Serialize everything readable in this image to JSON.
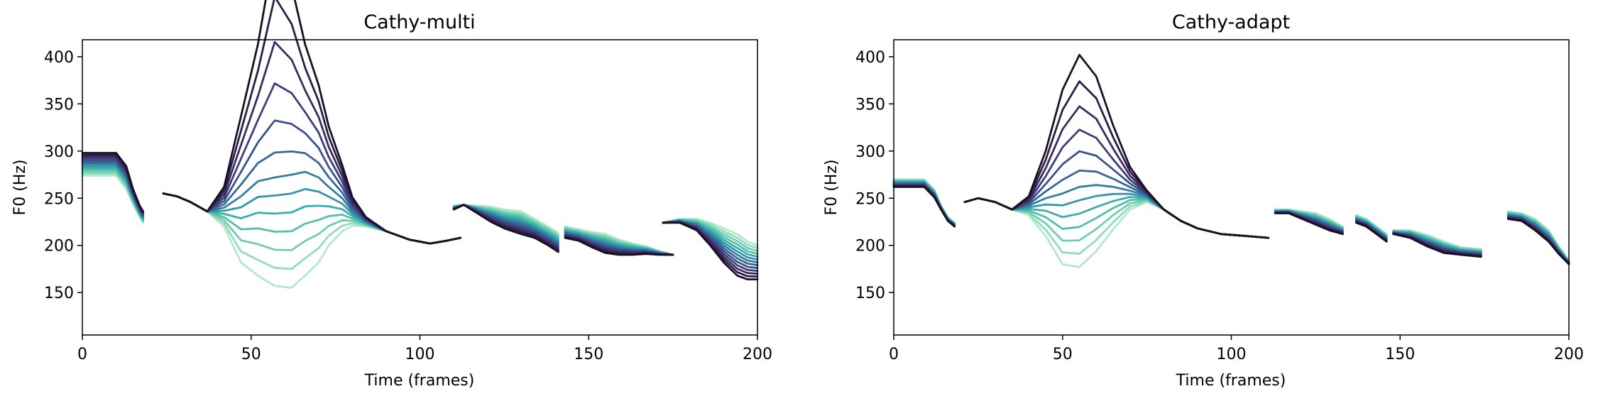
{
  "chart_data": [
    {
      "type": "line",
      "title": "Cathy-multi",
      "xlabel": "Time (frames)",
      "ylabel": "F0 (Hz)",
      "xlim": [
        0,
        200
      ],
      "ylim": [
        105,
        418
      ],
      "xticks": [
        0,
        50,
        100,
        150,
        200
      ],
      "yticks": [
        150,
        200,
        250,
        300,
        350,
        400
      ],
      "grid": false,
      "legend": "none",
      "colors": [
        "#b3e8cd",
        "#93dcbd",
        "#6fceb1",
        "#4fc0ae",
        "#3aadac",
        "#3497a6",
        "#347f9f",
        "#366798",
        "#3a508d",
        "#3d3d79",
        "#3a2c60",
        "#2d1e46",
        "#1a1022"
      ],
      "segments": [
        {
          "x": [
            0,
            10,
            13,
            15,
            17,
            18
          ],
          "base": [
            286,
            286,
            272,
            252,
            236,
            230
          ],
          "fan": [
            -12,
            -12,
            -12,
            -8,
            -6,
            -6
          ],
          "peak": 0
        },
        {
          "x": [
            24,
            28,
            32,
            37,
            42,
            47,
            52,
            57,
            62,
            66,
            70,
            73,
            77,
            80,
            84,
            90,
            97,
            103,
            108,
            112
          ],
          "base": [
            255,
            252,
            246,
            236,
            240,
            252,
            268,
            272,
            275,
            278,
            272,
            262,
            250,
            236,
            225,
            215,
            206,
            202,
            205,
            208
          ],
          "fan": [
            0,
            0,
            0,
            0,
            -20,
            -70,
            -100,
            -115,
            -120,
            -110,
            -90,
            -62,
            -35,
            -15,
            -5,
            0,
            0,
            0,
            0,
            0
          ],
          "peak": [
            0,
            0,
            0,
            0,
            2,
            15,
            45,
            128,
            80,
            25,
            8,
            2,
            0,
            0,
            0,
            0,
            0,
            0,
            0,
            0
          ]
        },
        {
          "x": [
            110,
            113,
            117,
            121,
            125,
            130,
            134,
            138,
            141
          ],
          "base": [
            240,
            243,
            238,
            233,
            228,
            224,
            218,
            210,
            203
          ],
          "fan": [
            2,
            0,
            4,
            8,
            10,
            12,
            10,
            10,
            10
          ],
          "peak": 0
        },
        {
          "x": [
            143,
            147,
            151,
            155,
            159,
            163,
            167,
            171,
            175
          ],
          "base": [
            214,
            211,
            206,
            202,
            198,
            196,
            195,
            192,
            190
          ],
          "fan": [
            6,
            6,
            8,
            10,
            8,
            6,
            4,
            2,
            0
          ],
          "peak": 0
        },
        {
          "x": [
            172,
            177,
            182,
            186,
            190,
            194,
            197,
            200
          ],
          "base": [
            224,
            226,
            222,
            212,
            200,
            190,
            184,
            182
          ],
          "fan": [
            0,
            2,
            6,
            12,
            18,
            22,
            20,
            18
          ],
          "peak": 0
        }
      ]
    },
    {
      "type": "line",
      "title": "Cathy-adapt",
      "xlabel": "Time (frames)",
      "ylabel": "F0 (Hz)",
      "xlim": [
        0,
        200
      ],
      "ylim": [
        105,
        418
      ],
      "xticks": [
        0,
        50,
        100,
        150,
        200
      ],
      "yticks": [
        150,
        200,
        250,
        300,
        350,
        400
      ],
      "grid": false,
      "legend": "none",
      "colors": [
        "#b3e8cd",
        "#93dcbd",
        "#6fceb1",
        "#4fc0ae",
        "#3aadac",
        "#3497a6",
        "#347f9f",
        "#366798",
        "#3a508d",
        "#3d3d79",
        "#3a2c60",
        "#2d1e46",
        "#1a1022"
      ],
      "segments": [
        {
          "x": [
            0,
            9,
            12,
            14,
            16,
            18
          ],
          "base": [
            266,
            266,
            255,
            240,
            228,
            222
          ],
          "fan": [
            4,
            4,
            4,
            2,
            2,
            2
          ],
          "peak": 0
        },
        {
          "x": [
            21,
            25,
            30,
            35,
            40,
            45,
            50,
            55,
            60,
            65,
            70,
            75,
            80,
            85,
            90,
            97,
            104,
            111
          ],
          "base": [
            246,
            250,
            246,
            238,
            242,
            250,
            255,
            262,
            264,
            262,
            258,
            252,
            238,
            226,
            218,
            212,
            210,
            208
          ],
          "fan": [
            0,
            0,
            0,
            0,
            -10,
            -40,
            -75,
            -85,
            -70,
            -45,
            -20,
            -6,
            0,
            0,
            0,
            0,
            0,
            0
          ],
          "peak": [
            0,
            0,
            0,
            0,
            0,
            10,
            35,
            55,
            45,
            20,
            5,
            0,
            0,
            0,
            0,
            0,
            0,
            0
          ]
        },
        {
          "x": [
            113,
            117,
            121,
            125,
            129,
            133
          ],
          "base": [
            236,
            236,
            232,
            228,
            222,
            216
          ],
          "fan": [
            2,
            2,
            4,
            6,
            6,
            4
          ],
          "peak": 0
        },
        {
          "x": [
            137,
            140,
            143,
            146
          ],
          "base": [
            228,
            224,
            216,
            208
          ],
          "fan": [
            4,
            4,
            4,
            4
          ],
          "peak": 0
        },
        {
          "x": [
            148,
            153,
            158,
            163,
            168,
            174
          ],
          "base": [
            214,
            212,
            205,
            198,
            194,
            192
          ],
          "fan": [
            2,
            4,
            6,
            6,
            4,
            4
          ],
          "peak": 0
        },
        {
          "x": [
            182,
            186,
            190,
            194,
            197,
            200
          ],
          "base": [
            232,
            230,
            222,
            210,
            195,
            182
          ],
          "fan": [
            4,
            4,
            6,
            6,
            4,
            2
          ],
          "peak": 0
        }
      ]
    }
  ]
}
